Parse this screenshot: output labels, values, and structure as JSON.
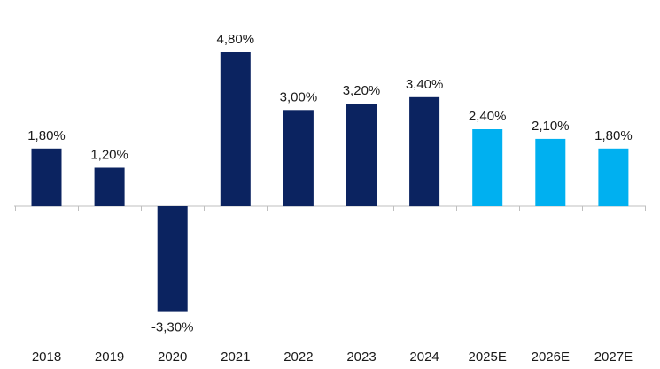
{
  "colors": {
    "actual": "#0b2360",
    "estimate": "#00b0f0",
    "axis": "#bfbfbf",
    "text": "#1a1a1a"
  },
  "chart_data": {
    "type": "bar",
    "title": "",
    "xlabel": "",
    "ylabel": "",
    "grid": false,
    "legend": "none",
    "ylim": [
      -3.3,
      4.8
    ],
    "categories": [
      "2018",
      "2019",
      "2020",
      "2021",
      "2022",
      "2023",
      "2024",
      "2025E",
      "2026E",
      "2027E"
    ],
    "values": [
      1.8,
      1.2,
      -3.3,
      4.8,
      3.0,
      3.2,
      3.4,
      2.4,
      2.1,
      1.8
    ],
    "value_labels": [
      "1,80%",
      "1,20%",
      "-3,30%",
      "4,80%",
      "3,00%",
      "3,20%",
      "3,40%",
      "2,40%",
      "2,10%",
      "1,80%"
    ],
    "series_kind": [
      "actual",
      "actual",
      "actual",
      "actual",
      "actual",
      "actual",
      "actual",
      "estimate",
      "estimate",
      "estimate"
    ]
  }
}
